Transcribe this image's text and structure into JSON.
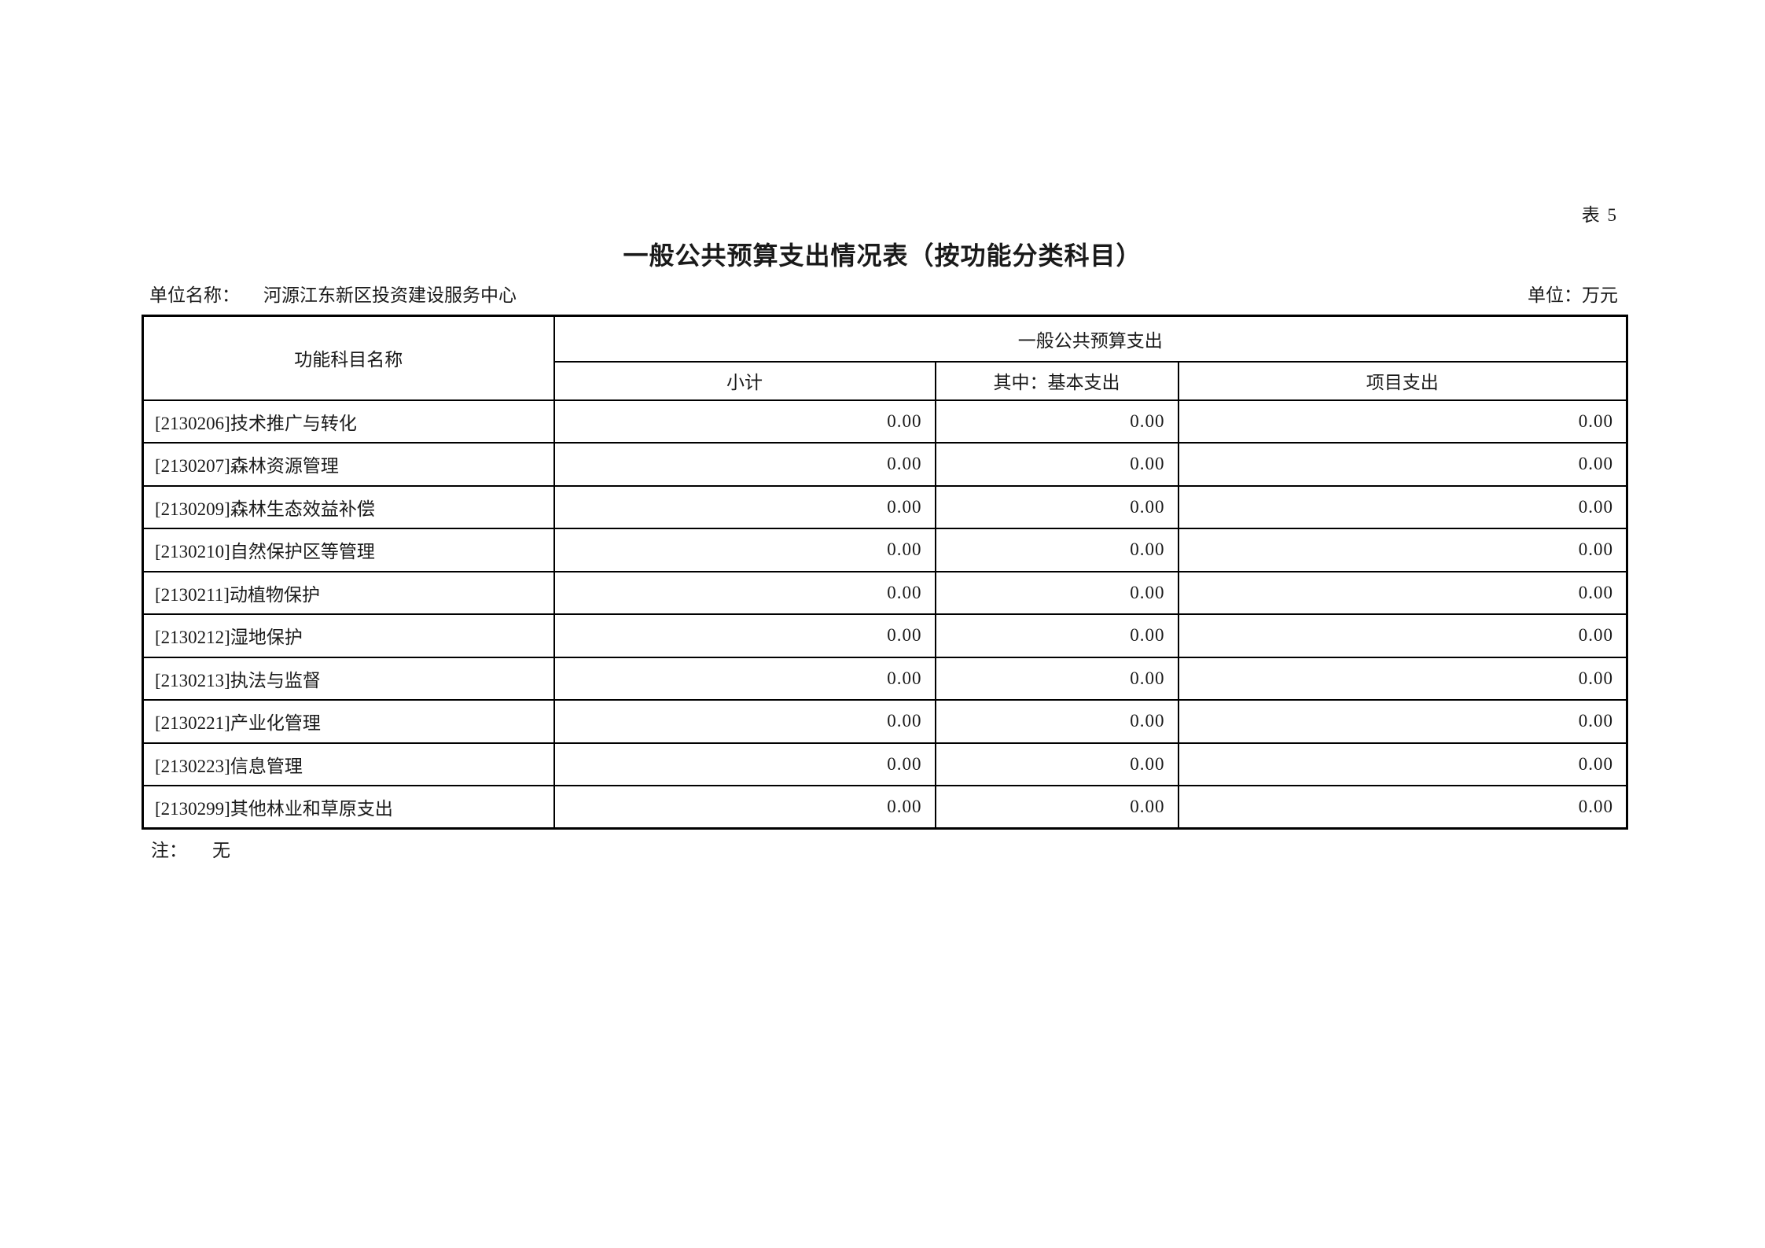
{
  "page": {
    "table_no": "表 5",
    "title": "一般公共预算支出情况表（按功能分类科目）",
    "unit_name_label": "单位名称：",
    "unit_name": "河源江东新区投资建设服务中心",
    "currency_unit_label": "单位：万元",
    "note_label": "注：",
    "note": "无"
  },
  "table": {
    "col1_header": "功能科目名称",
    "group_header": "一般公共预算支出",
    "sub_headers": [
      "小计",
      "其中：基本支出",
      "项目支出"
    ],
    "rows": [
      {
        "name": "[2130206]技术推广与转化",
        "subtotal": "0.00",
        "basic": "0.00",
        "project": "0.00"
      },
      {
        "name": "[2130207]森林资源管理",
        "subtotal": "0.00",
        "basic": "0.00",
        "project": "0.00"
      },
      {
        "name": "[2130209]森林生态效益补偿",
        "subtotal": "0.00",
        "basic": "0.00",
        "project": "0.00"
      },
      {
        "name": "[2130210]自然保护区等管理",
        "subtotal": "0.00",
        "basic": "0.00",
        "project": "0.00"
      },
      {
        "name": "[2130211]动植物保护",
        "subtotal": "0.00",
        "basic": "0.00",
        "project": "0.00"
      },
      {
        "name": "[2130212]湿地保护",
        "subtotal": "0.00",
        "basic": "0.00",
        "project": "0.00"
      },
      {
        "name": "[2130213]执法与监督",
        "subtotal": "0.00",
        "basic": "0.00",
        "project": "0.00"
      },
      {
        "name": "[2130221]产业化管理",
        "subtotal": "0.00",
        "basic": "0.00",
        "project": "0.00"
      },
      {
        "name": "[2130223]信息管理",
        "subtotal": "0.00",
        "basic": "0.00",
        "project": "0.00"
      },
      {
        "name": "[2130299]其他林业和草原支出",
        "subtotal": "0.00",
        "basic": "0.00",
        "project": "0.00"
      }
    ]
  }
}
